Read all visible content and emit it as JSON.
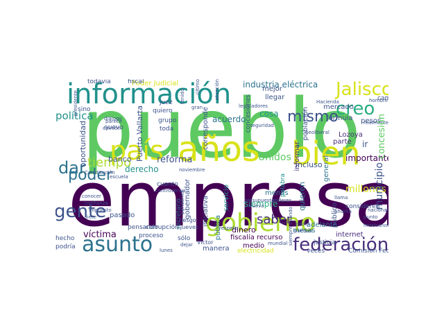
{
  "palette": {
    "dark_purple": "#440154",
    "indigo": "#472d7b",
    "blue": "#3b528b",
    "slate_blue": "#2c728e",
    "teal": "#21918c",
    "sea_green": "#28ae80",
    "green": "#5ec962",
    "lime": "#addc30",
    "yellow": "#d8e219",
    "gold": "#fde725"
  },
  "words": {
    "pueblo": "pueblo",
    "empresa": "empresa",
    "informacion": "información",
    "pais": "país",
    "anos": "años",
    "bien": "bien",
    "gobierno": "gobierno",
    "federacion": "federación",
    "asunto": "asunto",
    "jalisco": "Jalisco",
    "creo": "creo",
    "gente": "gente",
    "dar": "dar",
    "politica": "política",
    "poder": "poder",
    "tiempo": "tiempo",
    "mismo": "mismo",
    "saber": "saber",
    "industria_electrica": "industria eléctrica",
    "poder_judicial": "Poder Judicial",
    "reforma": "reforma",
    "derecho": "derecho",
    "banco": "banco",
    "victima": "víctima",
    "millones": "millones",
    "importante": "importante",
    "concesion": "concesión",
    "unidos": "Unidos",
    "siempre": "siempre",
    "acuerdo": "acuerdo",
    "cosa": "cosa",
    "puerto_vallarta": "Puerto Vallarta",
    "manera": "manera",
    "mesas": "mesas",
    "incluso": "incluso",
    "municipio": "municipio",
    "mercado": "mercado",
    "formula": "fórmula",
    "lozoya": "Lozoya",
    "pesos": "pesos",
    "parte": "parte",
    "publico": "público",
    "internet": "internet",
    "dinero": "dinero",
    "fiscalia": "fiscalía",
    "medio": "medio",
    "recurso": "recurso",
    "sale": "sale",
    "electricidad": "electricidad",
    "pasado": "pasado",
    "pensando": "pensando",
    "corrupcion": "corrupción",
    "proceso": "proceso",
    "hecho": "hecho",
    "podria": "podría",
    "todavia": "todavía",
    "fiscal": "fiscal",
    "juez": "juez",
    "quiero": "quiero",
    "grupo": "grupo",
    "sino": "sino",
    "oportunidad": "oportunidad",
    "toda": "toda",
    "nuevo": "nuevo",
    "cuanto": "cuanto",
    "gobernador": "gobernador",
    "iniciativa": "iniciativa",
    "publica": "pública",
    "solo": "sólo",
    "secretario": "secretario",
    "llegar": "llegar",
    "mejor": "mejor",
    "menos": "menos",
    "ir": "ir",
    "cambio": "cambio",
    "comision_federal": "Comisión Federal",
    "adelante": "adelante",
    "quieren": "quieren",
    "consideren": "consideren",
    "regresar": "regresar",
    "veces": "veces",
    "informar": "informar",
    "poblacion": "población",
    "general": "general",
    "forte": "forte",
    "ejemplo": "ejemplo",
    "embargo": "embargo",
    "llama": "llama",
    "pacto": "pacto",
    "hacienda": "Hacienda",
    "justicia": "justicia",
    "riesgo": "riesgo",
    "jueves": "jueves",
    "victor": "Víctor",
    "servicio": "servicio",
    "palabra": "palabra",
    "corresponde": "corresponde",
    "concesiones": "concesiones",
    "ultimo": "último",
    "lunes": "lunes",
    "dialogo": "diálogo",
    "presidente": "presidente",
    "realmente": "realmente",
    "hombre": "hombre",
    "nacional": "nacional",
    "actuar": "actuar",
    "mexicanos": "mexicanos",
    "siempre_cuando": "siempre cuando",
    "mundial": "mundial",
    "puedan": "puedan",
    "poderes": "poderes",
    "respeto": "respeto",
    "noviembre": "noviembre",
    "escuela": "escuela",
    "controversia": "controversia",
    "tenido": "tenido",
    "atencion": "atención",
    "legisladores": "legisladores",
    "presupuesto": "presupuesto",
    "seguridad": "seguridad",
    "constitucion": "Constitución",
    "ahorita": "ahorita",
    "impuesto": "impuesto",
    "conocer": "conocer",
    "confianza": "confianza",
    "siete": "siete",
    "parece": "parece",
    "opinion": "opinión",
    "pandemia": "pandemia",
    "veo": "veo",
    "lado": "lado",
    "gran": "gran",
    "mano": "mano",
    "juicio": "juicio",
    "neoliberal": "neoliberal",
    "plantas": "plantas",
    "acciones": "acciones",
    "hacer_cambio": "hacer",
    "luz": "luz",
    "dejar": "dejar",
    "tratar": "tratar",
    "estado": "estado",
    "aunque": "aunque",
    "fueron": "fueron",
    "energia": "energía",
    "petroleo": "petróleo",
    "sector": "sector",
    "agua": "agua",
    "deuda": "deuda",
    "cierto": "cierto",
    "nueva": "Nueva",
    "precio": "precio",
    "vamos": "vamos",
    "luego": "luego",
    "punto": "punto",
    "hacen": "hacen",
    "resto": "resto",
    "diario": "diario",
    "pide": "pide"
  }
}
